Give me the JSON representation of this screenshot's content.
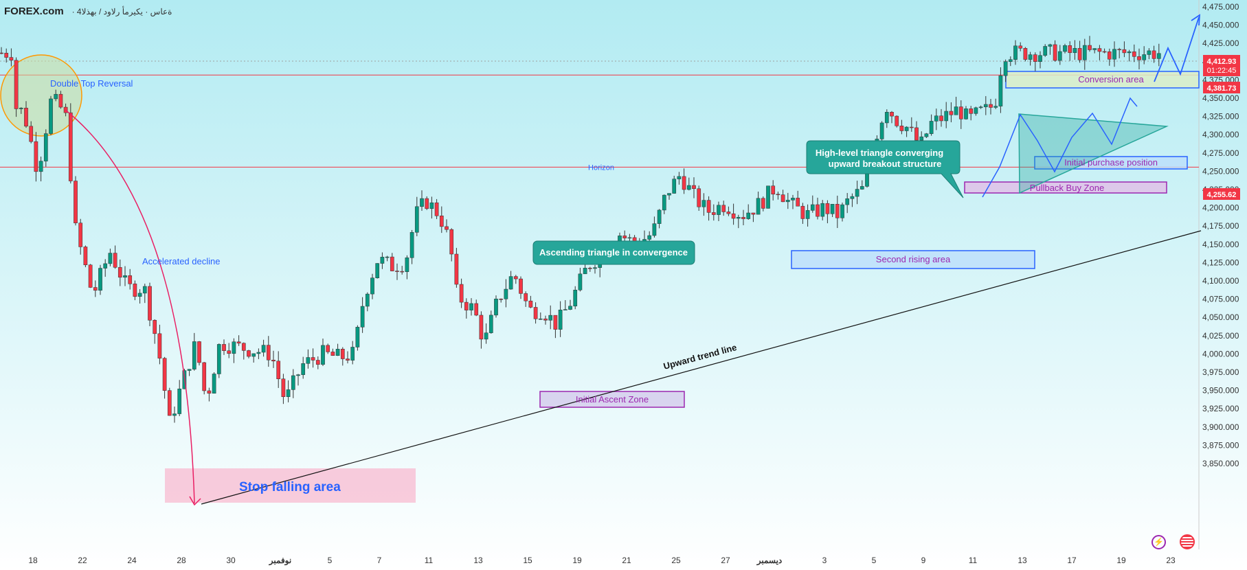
{
  "header": {
    "brand": "FOREX.com",
    "subtitle": "· 4ةعاس · يكيرمأ رلاود / بهذلا"
  },
  "colors": {
    "bg_top": "#b2ebf2",
    "bg_bottom": "#ffffff",
    "up": "#089981",
    "down": "#f23645",
    "wick": "#333333"
  },
  "chart_data": {
    "type": "candlestick",
    "price_axis": {
      "ticks": [
        4475,
        4450,
        4425,
        4400,
        4375,
        4350,
        4325,
        4300,
        4275,
        4250,
        4225,
        4200,
        4175,
        4150,
        4125,
        4100,
        4075,
        4050,
        4025,
        4000,
        3975,
        3950,
        3925,
        3900,
        3875,
        3850
      ],
      "range": [
        3840,
        4485
      ]
    },
    "x_axis": {
      "labels": [
        "18",
        "22",
        "24",
        "28",
        "30",
        "نوفمبر",
        "5",
        "7",
        "11",
        "13",
        "15",
        "19",
        "21",
        "25",
        "27",
        "ديسمبر",
        "3",
        "5",
        "9",
        "11",
        "13",
        "17",
        "19",
        "23"
      ]
    },
    "price_tags": [
      {
        "value": "4,412.93",
        "sub": "01:22:45",
        "color": "#f23645"
      },
      {
        "value": "4,381.73",
        "color": "#f23645"
      },
      {
        "value": "4,255.62",
        "color": "#f23645"
      }
    ],
    "horizontal_lines": [
      {
        "price": 4381.73,
        "label": "",
        "color": "#f23645"
      },
      {
        "price": 4255.62,
        "label": "Horizon",
        "color": "#f23645"
      }
    ],
    "anchors": [
      {
        "x": 20,
        "y": 4340
      },
      {
        "x": 35,
        "y": 4330
      },
      {
        "x": 55,
        "y": 4250
      },
      {
        "x": 75,
        "y": 4350
      },
      {
        "x": 95,
        "y": 4330
      },
      {
        "x": 110,
        "y": 4170
      },
      {
        "x": 135,
        "y": 4080
      },
      {
        "x": 160,
        "y": 4140
      },
      {
        "x": 185,
        "y": 4090
      },
      {
        "x": 210,
        "y": 4090
      },
      {
        "x": 230,
        "y": 4010
      },
      {
        "x": 247,
        "y": 3905
      },
      {
        "x": 265,
        "y": 3960
      },
      {
        "x": 285,
        "y": 4015
      },
      {
        "x": 300,
        "y": 3935
      },
      {
        "x": 320,
        "y": 4015
      },
      {
        "x": 345,
        "y": 4010
      },
      {
        "x": 370,
        "y": 4005
      },
      {
        "x": 395,
        "y": 4000
      },
      {
        "x": 415,
        "y": 3935
      },
      {
        "x": 440,
        "y": 3985
      },
      {
        "x": 470,
        "y": 4000
      },
      {
        "x": 495,
        "y": 3995
      },
      {
        "x": 515,
        "y": 4000
      },
      {
        "x": 530,
        "y": 4080
      },
      {
        "x": 550,
        "y": 4130
      },
      {
        "x": 570,
        "y": 4120
      },
      {
        "x": 590,
        "y": 4125
      },
      {
        "x": 605,
        "y": 4190
      },
      {
        "x": 620,
        "y": 4210
      },
      {
        "x": 640,
        "y": 4190
      },
      {
        "x": 655,
        "y": 4150
      },
      {
        "x": 665,
        "y": 4080
      },
      {
        "x": 690,
        "y": 4060
      },
      {
        "x": 705,
        "y": 4015
      },
      {
        "x": 725,
        "y": 4075
      },
      {
        "x": 748,
        "y": 4110
      },
      {
        "x": 770,
        "y": 4060
      },
      {
        "x": 790,
        "y": 4060
      },
      {
        "x": 810,
        "y": 4040
      },
      {
        "x": 830,
        "y": 4070
      },
      {
        "x": 855,
        "y": 4120
      },
      {
        "x": 880,
        "y": 4140
      },
      {
        "x": 900,
        "y": 4165
      },
      {
        "x": 925,
        "y": 4150
      },
      {
        "x": 950,
        "y": 4165
      },
      {
        "x": 970,
        "y": 4220
      },
      {
        "x": 990,
        "y": 4245
      },
      {
        "x": 1010,
        "y": 4215
      },
      {
        "x": 1030,
        "y": 4195
      },
      {
        "x": 1055,
        "y": 4205
      },
      {
        "x": 1080,
        "y": 4190
      },
      {
        "x": 1105,
        "y": 4205
      },
      {
        "x": 1130,
        "y": 4230
      },
      {
        "x": 1150,
        "y": 4205
      },
      {
        "x": 1175,
        "y": 4190
      },
      {
        "x": 1200,
        "y": 4200
      },
      {
        "x": 1220,
        "y": 4190
      },
      {
        "x": 1235,
        "y": 4210
      },
      {
        "x": 1255,
        "y": 4225
      },
      {
        "x": 1270,
        "y": 4285
      },
      {
        "x": 1290,
        "y": 4340
      },
      {
        "x": 1305,
        "y": 4320
      },
      {
        "x": 1320,
        "y": 4310
      },
      {
        "x": 1340,
        "y": 4285
      },
      {
        "x": 1355,
        "y": 4315
      },
      {
        "x": 1375,
        "y": 4325
      },
      {
        "x": 1395,
        "y": 4335
      },
      {
        "x": 1410,
        "y": 4320
      },
      {
        "x": 1425,
        "y": 4330
      },
      {
        "x": 1440,
        "y": 4335
      },
      {
        "x": 1450,
        "y": 4350
      },
      {
        "x": 1460,
        "y": 4412
      }
    ],
    "annotations": {
      "double_top": "Double Top Reversal",
      "accelerated": "Accelerated decline",
      "stop_falling": "Stop falling area",
      "initial_ascent": "Initial Ascent Zone",
      "ascending_triangle": "Ascending triangle in convergence",
      "upward_trend": "Upward trend line",
      "second_rising": "Second rising area",
      "high_level_1": "High-level triangle converging",
      "high_level_2": "upward breakout structure",
      "pullback": "Pullback Buy Zone",
      "initial_purchase": "Initial purchase position",
      "conversion": "Conversion area",
      "horizon": "Horizon"
    }
  }
}
